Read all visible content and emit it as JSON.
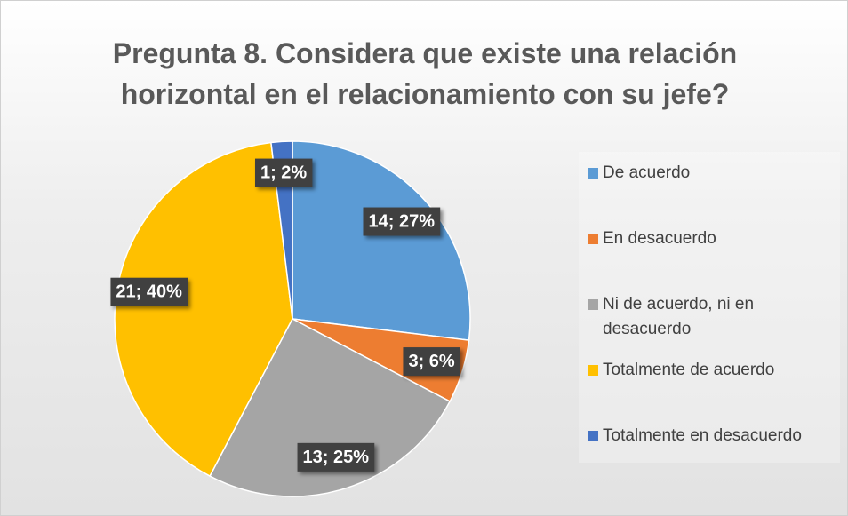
{
  "chart_data": {
    "type": "pie",
    "title": "Pregunta 8. Considera que existe una relación horizontal en el relacionamiento con su jefe?",
    "categories": [
      "De acuerdo",
      "En desacuerdo",
      "Ni de acuerdo, ni en desacuerdo",
      "Totalmente de acuerdo",
      "Totalmente en desacuerdo"
    ],
    "values": [
      14,
      3,
      13,
      21,
      1
    ],
    "value_labels": [
      "14; 27%",
      "3; 6%",
      "13; 25%",
      "21; 40%",
      "1; 2%"
    ],
    "colors": [
      "#5b9bd5",
      "#ed7d31",
      "#a5a5a5",
      "#ffc000",
      "#4472c4"
    ],
    "legend": "right"
  }
}
